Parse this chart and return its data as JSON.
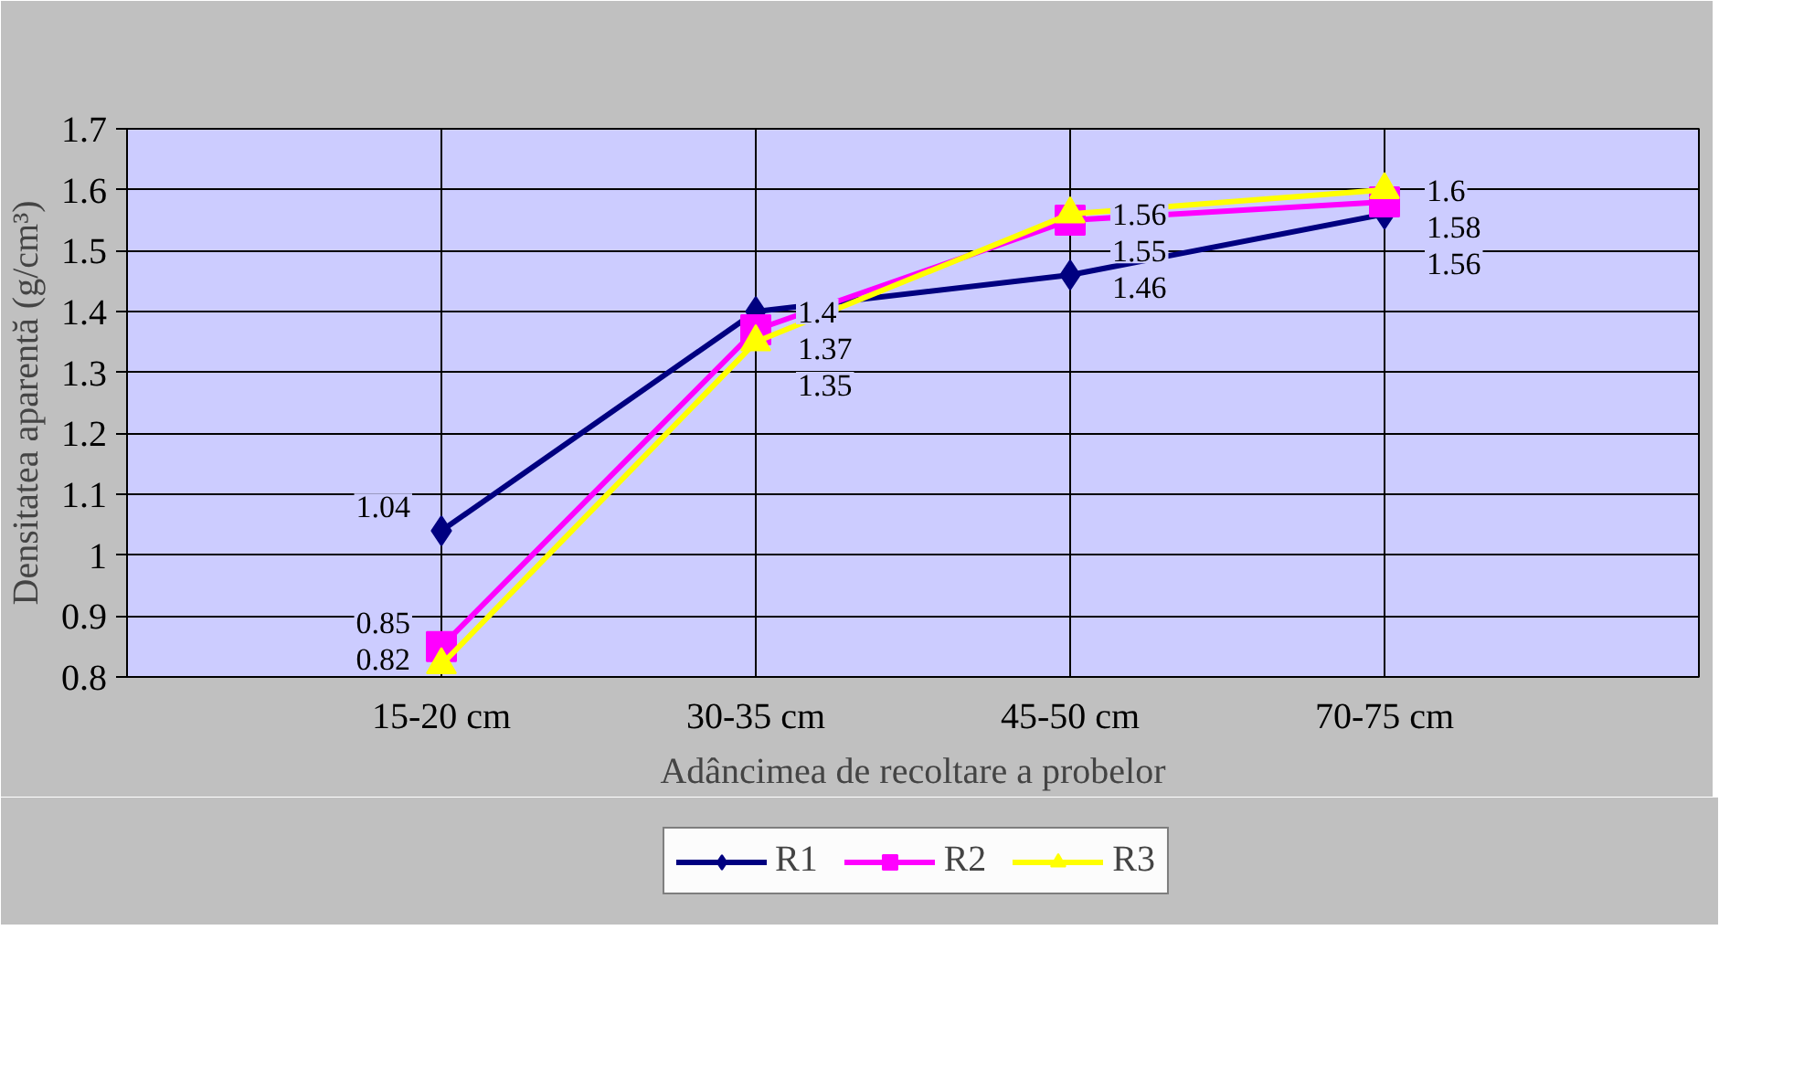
{
  "chart_data": {
    "type": "line",
    "xlabel": "Adâncimea de recoltare a probelor",
    "ylabel": "Densitatea aparentă (g/cm³)",
    "categories": [
      "15-20 cm",
      "30-35 cm",
      "45-50 cm",
      "70-75 cm"
    ],
    "series": [
      {
        "name": "R1",
        "color": "#000080",
        "marker": "diamond",
        "values": [
          1.04,
          1.4,
          1.46,
          1.56
        ]
      },
      {
        "name": "R2",
        "color": "#ff00ff",
        "marker": "square",
        "values": [
          0.85,
          1.37,
          1.55,
          1.58
        ]
      },
      {
        "name": "R3",
        "color": "#ffff00",
        "marker": "triangle",
        "values": [
          0.82,
          1.35,
          1.56,
          1.6
        ]
      }
    ],
    "ylim": [
      0.8,
      1.7
    ],
    "yticks": [
      0.8,
      0.9,
      1,
      1.1,
      1.2,
      1.3,
      1.4,
      1.5,
      1.6,
      1.7
    ],
    "grid": true,
    "legend": "bottom",
    "data_labels": true,
    "line_style": "solid"
  }
}
